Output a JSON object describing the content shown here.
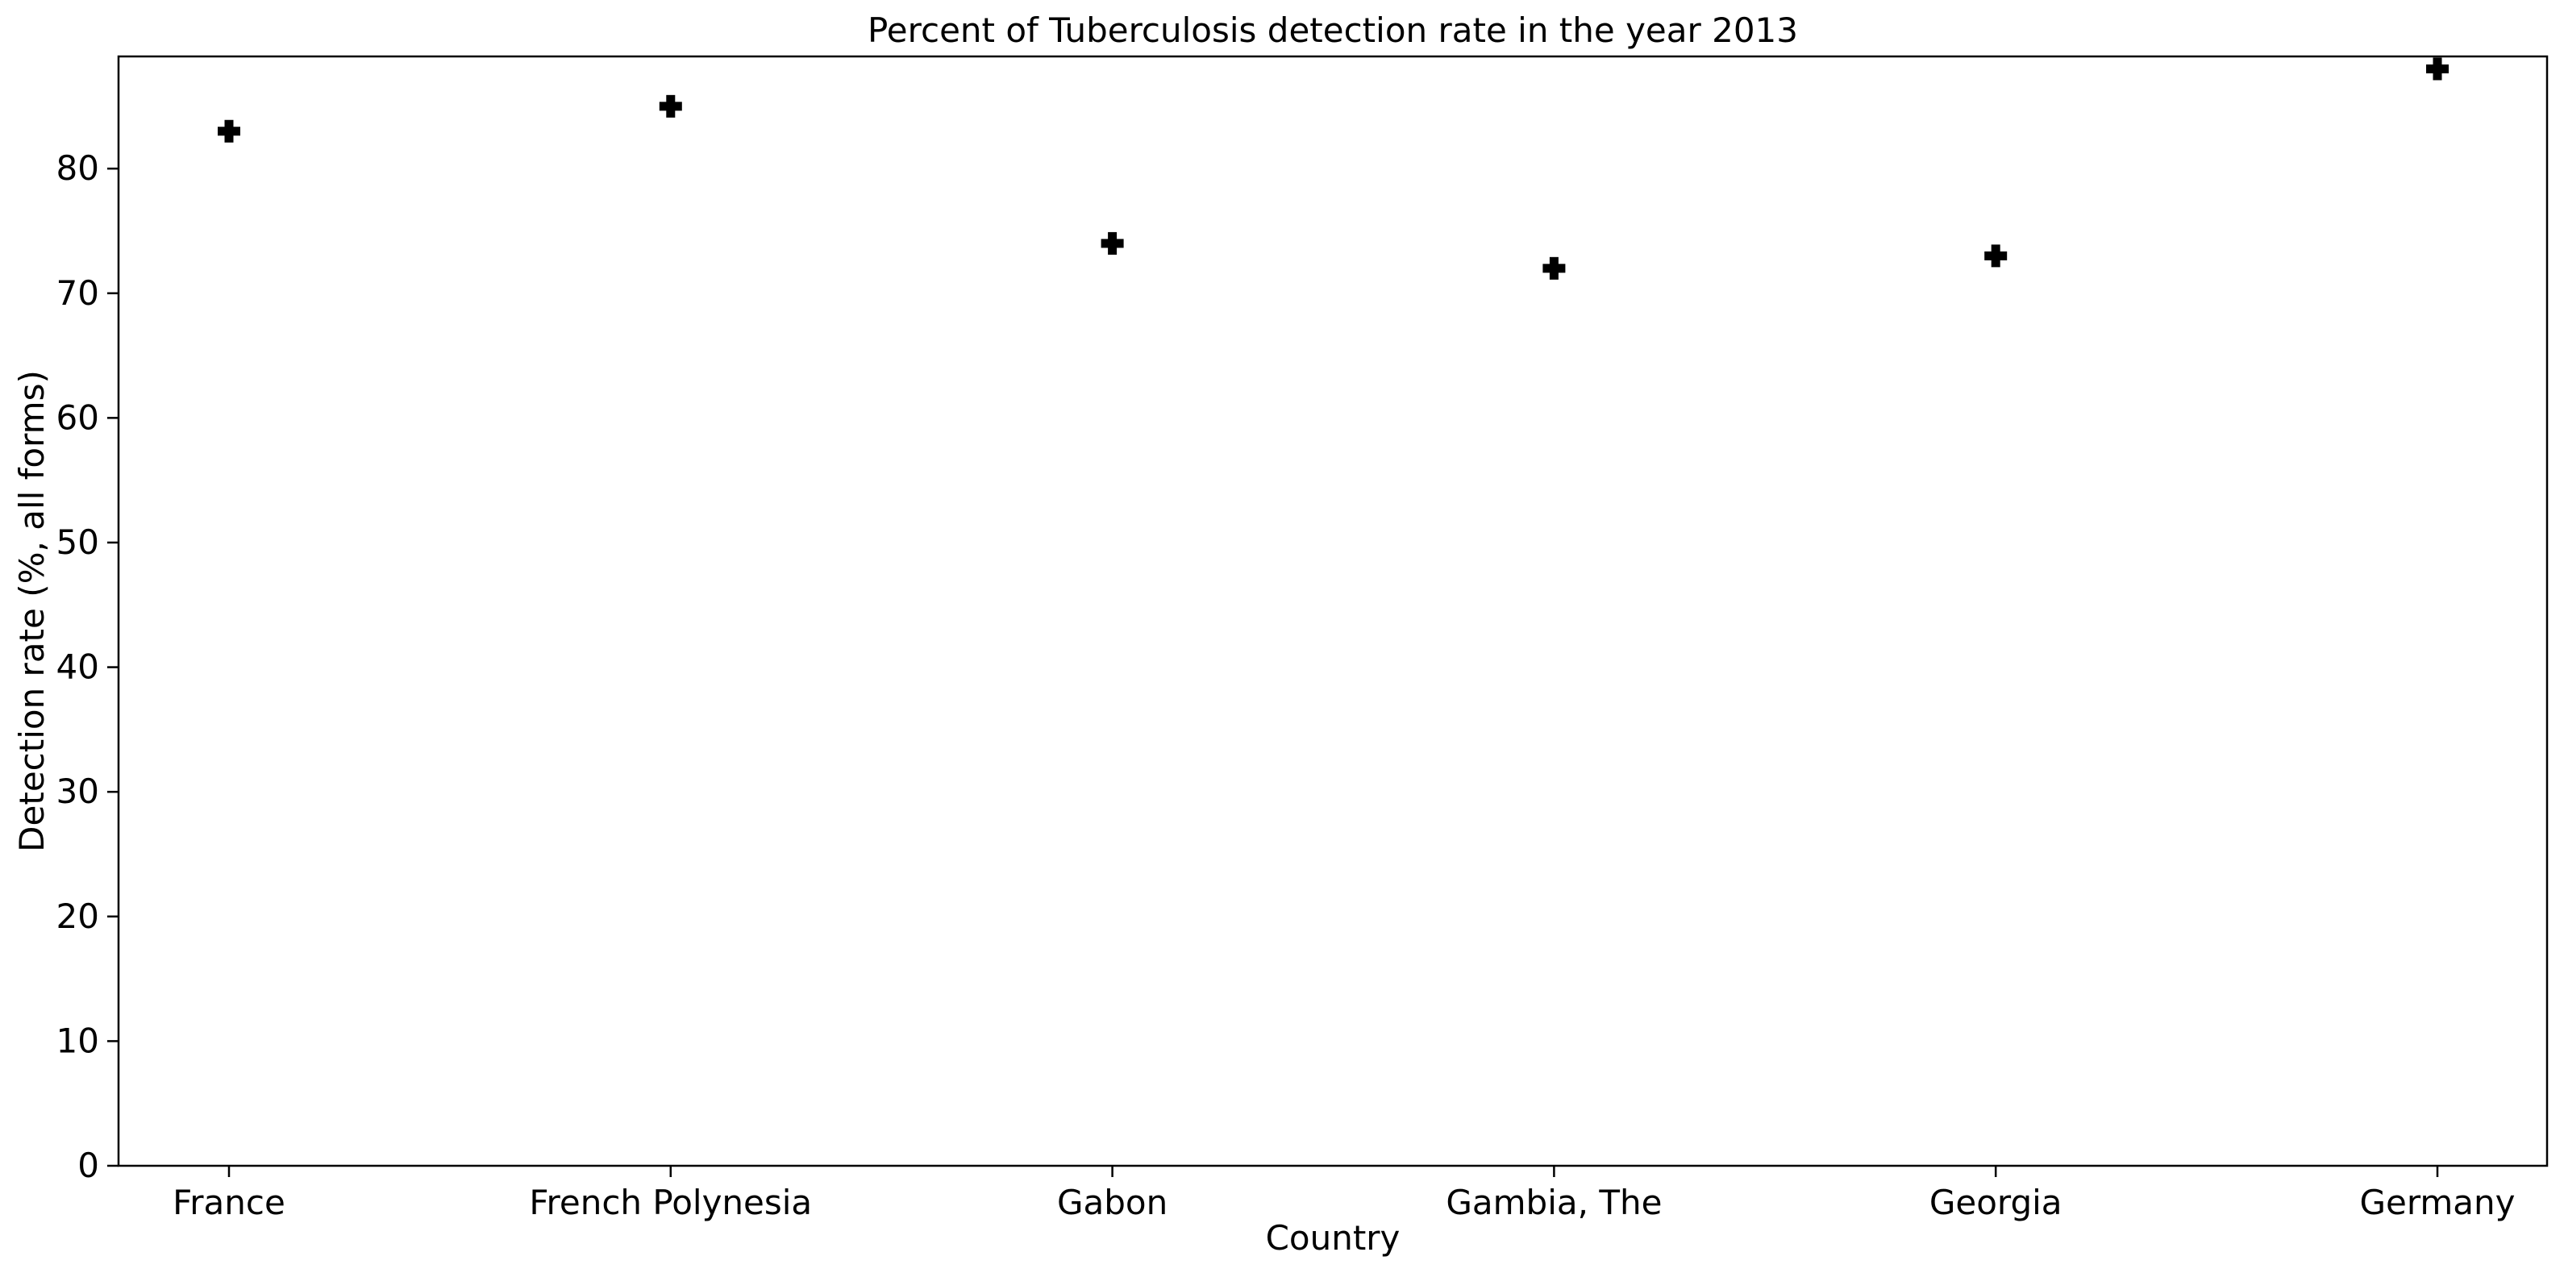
{
  "chart_data": {
    "type": "scatter",
    "title": "Percent of Tuberculosis detection rate in the year 2013",
    "xlabel": "Country",
    "ylabel": "Detection rate (%, all forms)",
    "categories": [
      "France",
      "French Polynesia",
      "Gabon",
      "Gambia, The",
      "Georgia",
      "Germany"
    ],
    "series": [
      {
        "values": [
          83,
          85,
          74,
          72,
          73,
          88
        ]
      }
    ],
    "ylim": [
      0,
      89
    ],
    "yticks": [
      0,
      10,
      20,
      30,
      40,
      50,
      60,
      70,
      80
    ],
    "grid": false,
    "legend": "none",
    "marker": "plus-filled",
    "marker_color": "#000000"
  }
}
